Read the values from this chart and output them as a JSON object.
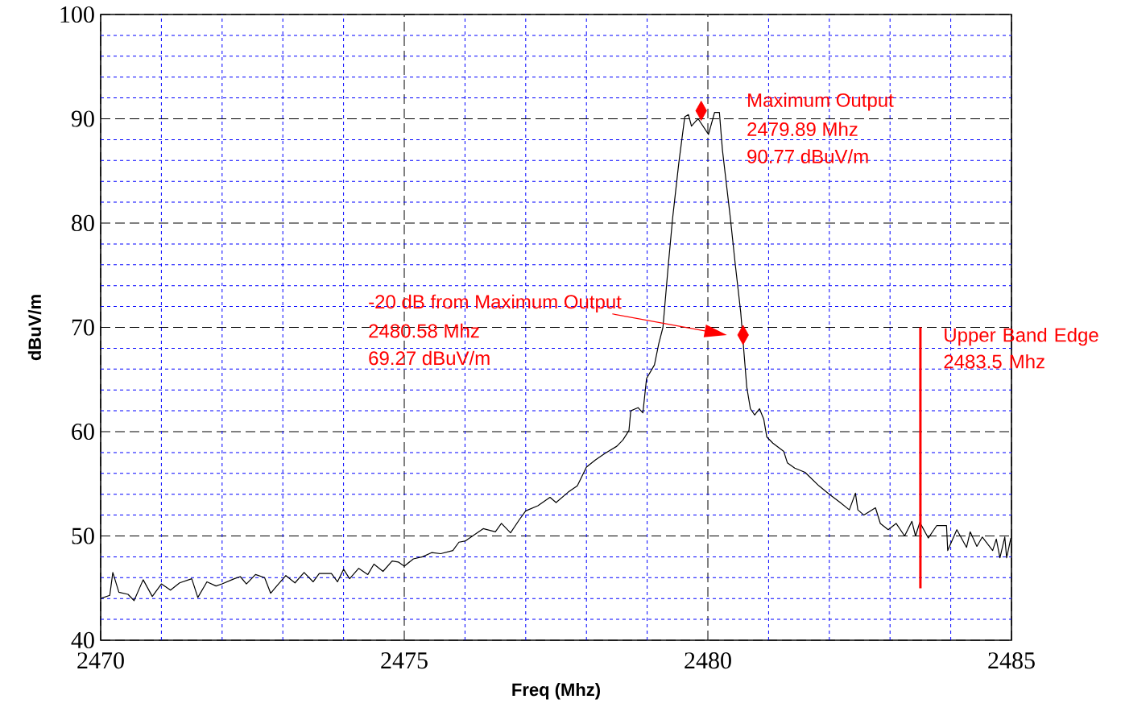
{
  "chart_data": {
    "type": "line",
    "xlabel": "Freq (Mhz)",
    "ylabel": "dBuV/m",
    "xlim": [
      2470,
      2485
    ],
    "xticks": [
      2470,
      {
        "value": 2471,
        "label": null
      },
      {
        "value": 2472,
        "label": null
      },
      {
        "value": 2473,
        "label": null
      },
      {
        "value": 2474,
        "label": null
      },
      2475,
      {
        "value": 2476,
        "label": null
      },
      {
        "value": 2477,
        "label": null
      },
      {
        "value": 2478,
        "label": null
      },
      {
        "value": 2479,
        "label": null
      },
      2480,
      {
        "value": 2481,
        "label": null
      },
      {
        "value": 2482,
        "label": null
      },
      {
        "value": 2483,
        "label": null
      },
      {
        "value": 2484,
        "label": null
      },
      2485
    ],
    "ylim": [
      40,
      100
    ],
    "yticks": [
      40,
      {
        "value": 42,
        "label": null
      },
      {
        "value": 44,
        "label": null
      },
      {
        "value": 46,
        "label": null
      },
      {
        "value": 48,
        "label": null
      },
      50,
      {
        "value": 52,
        "label": null
      },
      {
        "value": 54,
        "label": null
      },
      {
        "value": 56,
        "label": null
      },
      {
        "value": 58,
        "label": null
      },
      60,
      {
        "value": 62,
        "label": null
      },
      {
        "value": 64,
        "label": null
      },
      {
        "value": 66,
        "label": null
      },
      {
        "value": 68,
        "label": null
      },
      70,
      {
        "value": 72,
        "label": null
      },
      {
        "value": 74,
        "label": null
      },
      {
        "value": 76,
        "label": null
      },
      {
        "value": 78,
        "label": null
      },
      80,
      {
        "value": 82,
        "label": null
      },
      {
        "value": 84,
        "label": null
      },
      {
        "value": 86,
        "label": null
      },
      {
        "value": 88,
        "label": null
      },
      90,
      {
        "value": 92,
        "label": null
      },
      {
        "value": 94,
        "label": null
      },
      {
        "value": 96,
        "label": null
      },
      {
        "value": 98,
        "label": null
      },
      100
    ],
    "grid": true,
    "marker": "none",
    "line_style": "solid",
    "series": [
      {
        "color": "#000000",
        "x": [
          2470.0,
          2470.15,
          2470.2,
          2470.3,
          2470.45,
          2470.55,
          2470.7,
          2470.85,
          2471.0,
          2471.15,
          2471.3,
          2471.5,
          2471.6,
          2471.75,
          2471.9,
          2472.0,
          2472.2,
          2472.3,
          2472.4,
          2472.55,
          2472.7,
          2472.8,
          2472.9,
          2473.05,
          2473.2,
          2473.35,
          2473.5,
          2473.6,
          2473.8,
          2473.9,
          2474.0,
          2474.1,
          2474.25,
          2474.4,
          2474.5,
          2474.65,
          2474.8,
          2474.9,
          2475.0,
          2475.15,
          2475.3,
          2475.45,
          2475.6,
          2475.8,
          2475.9,
          2476.0,
          2476.3,
          2476.5,
          2476.6,
          2476.75,
          2476.9,
          2477.0,
          2477.2,
          2477.4,
          2477.5,
          2477.7,
          2477.85,
          2478.0,
          2478.15,
          2478.3,
          2478.5,
          2478.6,
          2478.7,
          2478.73,
          2478.85,
          2478.93,
          2478.99,
          2479.12,
          2479.19,
          2479.26,
          2479.35,
          2479.42,
          2479.52,
          2479.62,
          2479.68,
          2479.73,
          2479.79,
          2479.84,
          2480.01,
          2480.11,
          2480.19,
          2480.24,
          2480.37,
          2480.45,
          2480.54,
          2480.64,
          2480.7,
          2480.77,
          2480.85,
          2480.92,
          2480.97,
          2481.07,
          2481.25,
          2481.31,
          2481.43,
          2481.6,
          2481.83,
          2482.0,
          2482.18,
          2482.33,
          2482.43,
          2482.47,
          2482.57,
          2482.76,
          2482.84,
          2482.97,
          2483.1,
          2483.24,
          2483.36,
          2483.42,
          2483.49,
          2483.63,
          2483.77,
          2483.93,
          2483.95,
          2484.1,
          2484.26,
          2484.32,
          2484.43,
          2484.52,
          2484.69,
          2484.75,
          2484.81,
          2484.89,
          2484.92,
          2484.99
        ],
        "values": [
          44.0,
          44.3,
          46.5,
          44.6,
          44.4,
          43.8,
          45.8,
          44.2,
          45.4,
          44.8,
          45.5,
          45.9,
          44.1,
          45.6,
          45.2,
          45.4,
          45.9,
          46.1,
          45.4,
          46.3,
          46.0,
          44.5,
          45.2,
          46.2,
          45.5,
          46.5,
          45.6,
          46.4,
          46.4,
          45.6,
          46.8,
          45.9,
          46.9,
          46.3,
          47.3,
          46.6,
          47.6,
          47.5,
          47.1,
          47.8,
          48.0,
          48.4,
          48.3,
          48.6,
          49.4,
          49.5,
          50.7,
          50.4,
          51.2,
          50.3,
          51.6,
          52.4,
          52.9,
          53.7,
          53.2,
          54.2,
          54.8,
          56.6,
          57.3,
          57.9,
          58.6,
          59.2,
          60.1,
          62.0,
          62.3,
          61.8,
          65.1,
          66.4,
          68.4,
          70.0,
          76.1,
          80.5,
          85.7,
          90.2,
          90.4,
          89.3,
          89.7,
          90.0,
          88.5,
          90.6,
          90.6,
          87.0,
          80.5,
          76.1,
          71.5,
          64.3,
          62.2,
          61.6,
          62.2,
          61.2,
          59.5,
          58.9,
          58.1,
          57.0,
          56.5,
          56.1,
          54.8,
          54.0,
          53.2,
          52.5,
          54.1,
          52.5,
          52.0,
          52.7,
          51.2,
          50.6,
          51.2,
          50.0,
          51.4,
          50.0,
          51.3,
          49.8,
          51.0,
          51.0,
          48.6,
          50.6,
          48.9,
          50.4,
          49.0,
          49.9,
          48.6,
          49.7,
          47.9,
          49.9,
          47.9,
          49.8
        ]
      },
      {
        "type": "scatter",
        "marker": "diamond",
        "color": "#ff0000",
        "x": [
          2479.89,
          2480.58
        ],
        "values": [
          90.77,
          69.27
        ]
      }
    ],
    "ref_lines": [
      {
        "axis": "x",
        "value": 2483.5,
        "label": "Upper Band Edge 2483.5 Mhz",
        "color": "#ff0000"
      }
    ],
    "annotations": [
      "Maximum Output",
      "2479.89 Mhz",
      "90.77 dBuV/m",
      "-20 dB from Maximum Output",
      "2480.58 Mhz",
      "69.27 dBuV/m"
    ]
  }
}
